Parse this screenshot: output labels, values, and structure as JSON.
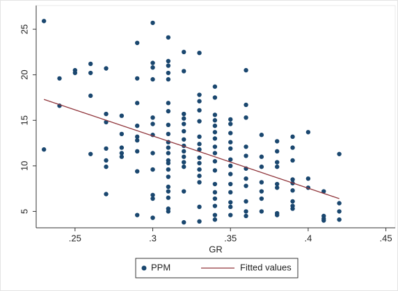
{
  "chart_data": {
    "type": "scatter",
    "xlabel": "GR",
    "xlim": [
      0.225,
      0.456
    ],
    "ylim": [
      3.2,
      27.6
    ],
    "xticks": [
      {
        "value": 0.25,
        "label": ".25"
      },
      {
        "value": 0.3,
        "label": ".3"
      },
      {
        "value": 0.35,
        "label": ".35"
      },
      {
        "value": 0.4,
        "label": ".4"
      },
      {
        "value": 0.45,
        "label": ".45"
      }
    ],
    "yticks": [
      5,
      10,
      15,
      20,
      25
    ],
    "legend": "bottom",
    "series": [
      {
        "name": "PPM",
        "type": "scatter",
        "color": "#1a476f",
        "x": [
          0.23,
          0.23,
          0.24,
          0.24,
          0.25,
          0.25,
          0.26,
          0.26,
          0.26,
          0.26,
          0.27,
          0.27,
          0.27,
          0.27,
          0.27,
          0.27,
          0.27,
          0.28,
          0.28,
          0.28,
          0.28,
          0.28,
          0.29,
          0.29,
          0.29,
          0.29,
          0.29,
          0.29,
          0.29,
          0.29,
          0.29,
          0.3,
          0.3,
          0.3,
          0.3,
          0.3,
          0.3,
          0.3,
          0.3,
          0.3,
          0.3,
          0.3,
          0.3,
          0.31,
          0.31,
          0.31,
          0.31,
          0.31,
          0.31,
          0.31,
          0.31,
          0.31,
          0.31,
          0.31,
          0.31,
          0.31,
          0.31,
          0.31,
          0.31,
          0.31,
          0.31,
          0.31,
          0.31,
          0.31,
          0.32,
          0.32,
          0.32,
          0.32,
          0.32,
          0.32,
          0.32,
          0.32,
          0.32,
          0.32,
          0.32,
          0.32,
          0.32,
          0.32,
          0.33,
          0.33,
          0.33,
          0.33,
          0.33,
          0.33,
          0.33,
          0.33,
          0.33,
          0.33,
          0.33,
          0.33,
          0.33,
          0.33,
          0.33,
          0.34,
          0.34,
          0.34,
          0.34,
          0.34,
          0.34,
          0.34,
          0.34,
          0.34,
          0.34,
          0.34,
          0.34,
          0.34,
          0.34,
          0.34,
          0.34,
          0.34,
          0.35,
          0.35,
          0.35,
          0.35,
          0.35,
          0.35,
          0.35,
          0.35,
          0.35,
          0.35,
          0.35,
          0.35,
          0.35,
          0.36,
          0.36,
          0.36,
          0.36,
          0.36,
          0.36,
          0.36,
          0.36,
          0.36,
          0.36,
          0.36,
          0.37,
          0.37,
          0.37,
          0.37,
          0.37,
          0.37,
          0.37,
          0.38,
          0.38,
          0.38,
          0.38,
          0.38,
          0.38,
          0.38,
          0.38,
          0.39,
          0.39,
          0.39,
          0.39,
          0.39,
          0.39,
          0.39,
          0.39,
          0.39,
          0.4,
          0.4,
          0.4,
          0.41,
          0.41,
          0.41,
          0.41,
          0.42,
          0.42,
          0.42,
          0.42
        ],
        "values": [
          25.9,
          11.8,
          19.6,
          16.6,
          20.5,
          20.2,
          21.2,
          20.2,
          17.7,
          11.3,
          20.7,
          15.7,
          14.8,
          11.9,
          10.6,
          9.9,
          6.9,
          15.5,
          13.5,
          12.0,
          11.4,
          11.0,
          23.5,
          19.6,
          16.9,
          14.4,
          13.2,
          12.8,
          11.6,
          9.4,
          4.6,
          25.7,
          21.3,
          20.8,
          19.5,
          15.3,
          14.6,
          13.4,
          11.4,
          9.6,
          6.8,
          6.4,
          4.3,
          24.1,
          21.5,
          21.0,
          20.2,
          19.5,
          16.9,
          16.0,
          14.5,
          13.5,
          12.6,
          12.0,
          11.4,
          10.6,
          10.3,
          9.6,
          8.8,
          7.7,
          7.2,
          6.5,
          5.3,
          5.0,
          22.5,
          20.4,
          15.7,
          15.2,
          14.6,
          13.8,
          12.9,
          12.2,
          11.6,
          11.0,
          10.4,
          9.9,
          7.2,
          3.8,
          22.4,
          17.8,
          17.1,
          16.1,
          14.9,
          13.2,
          12.4,
          11.8,
          10.9,
          10.3,
          9.6,
          8.9,
          8.2,
          5.5,
          3.9,
          18.7,
          17.5,
          15.6,
          15.0,
          14.4,
          13.7,
          13.0,
          12.1,
          11.4,
          10.5,
          9.5,
          8.0,
          7.1,
          6.4,
          5.6,
          4.6,
          4.1,
          15.1,
          14.6,
          13.6,
          12.6,
          11.9,
          10.7,
          10.0,
          9.1,
          8.0,
          7.1,
          6.0,
          5.5,
          4.6,
          20.5,
          16.7,
          15.3,
          12.1,
          11.1,
          9.7,
          8.6,
          7.8,
          6.1,
          5.0,
          4.5,
          13.4,
          11.0,
          9.9,
          8.2,
          7.2,
          6.4,
          5.0,
          12.7,
          11.6,
          10.4,
          9.9,
          8.0,
          7.6,
          4.8,
          4.6,
          13.2,
          12.0,
          10.6,
          8.5,
          8.1,
          7.3,
          6.1,
          5.6,
          5.3,
          13.7,
          8.6,
          7.6,
          7.2,
          4.5,
          4.2,
          4.0,
          11.3,
          5.9,
          5.0,
          4.1
        ]
      },
      {
        "name": "Fitted values",
        "type": "line",
        "color": "#90353b",
        "x": [
          0.23,
          0.42
        ],
        "values": [
          17.3,
          6.4
        ]
      }
    ]
  }
}
